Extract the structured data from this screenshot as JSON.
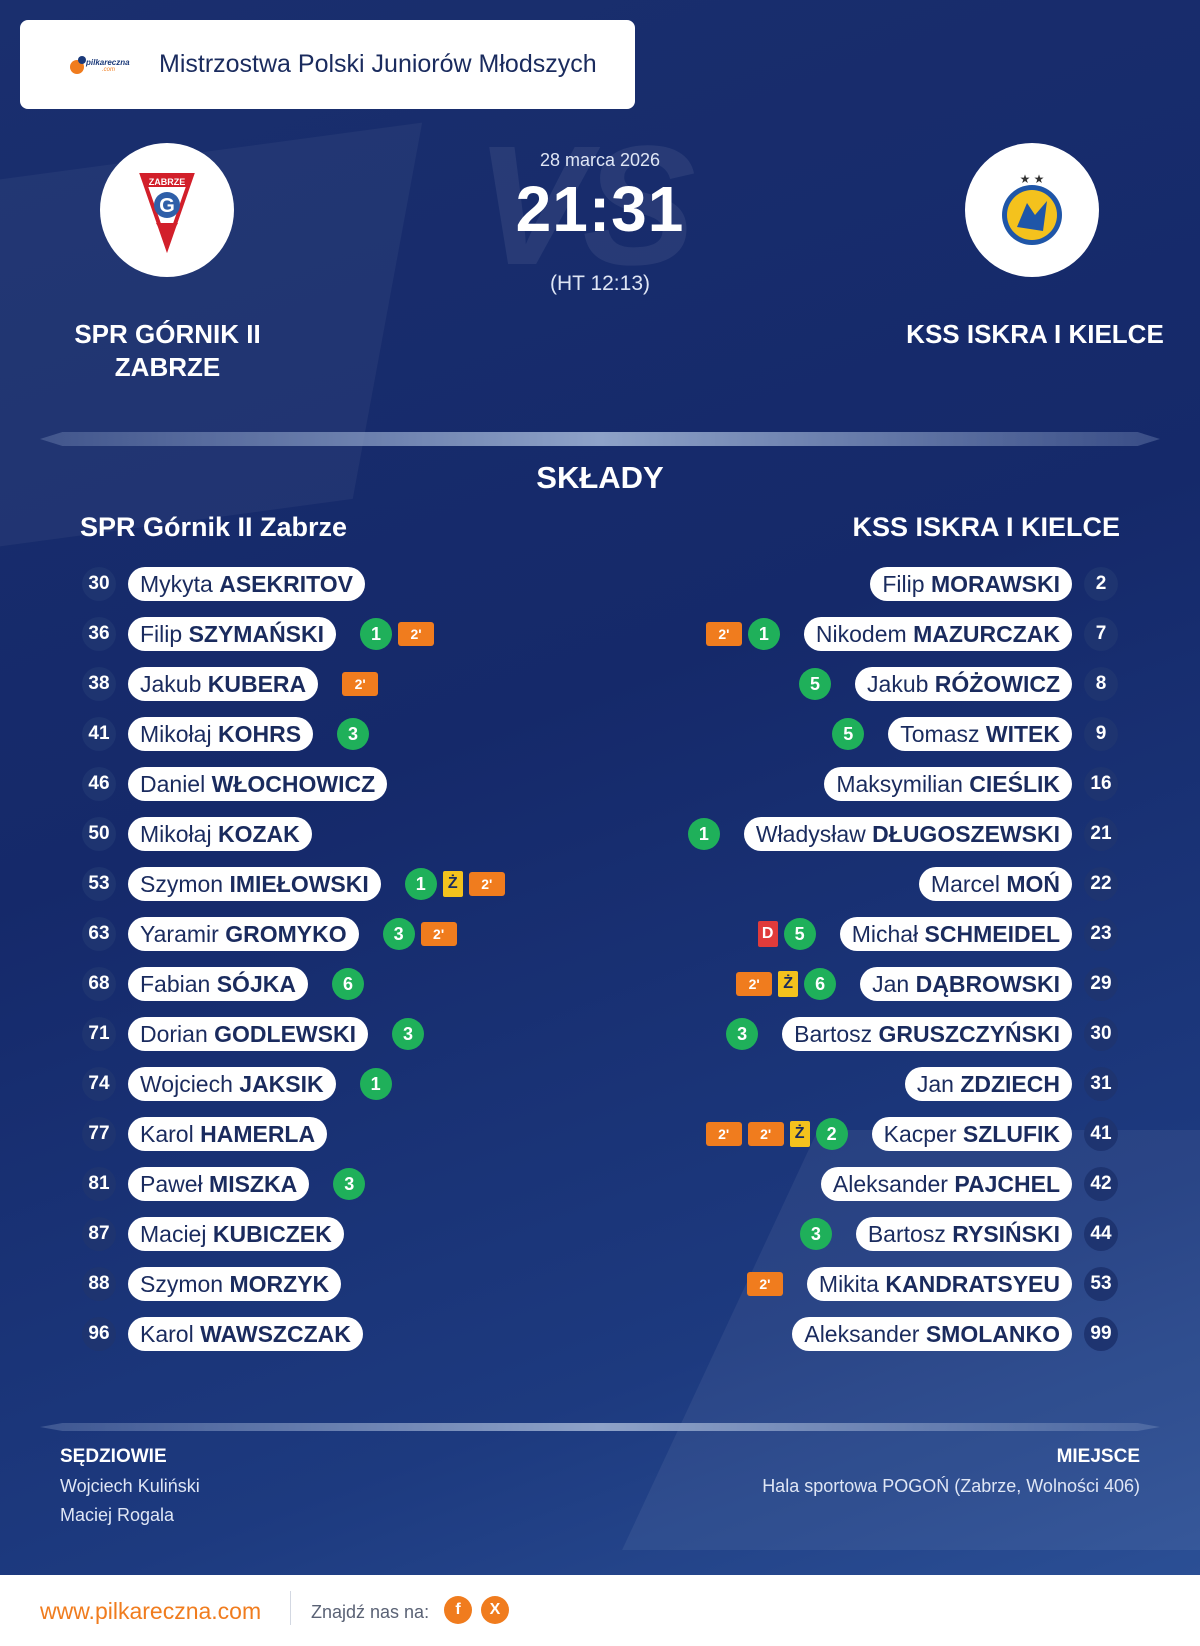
{
  "header": {
    "logo_text": "pilkareczna",
    "logo_suffix": ".com",
    "competition": "Mistrzostwa Polski Juniorów Młodszych"
  },
  "match": {
    "date": "28 marca 2026",
    "score": "21:31",
    "halftime": "(HT 12:13)",
    "vs_text": "VS",
    "home_team": "SPR GÓRNIK II ZABRZE",
    "away_team": "KSS ISKRA I KIELCE"
  },
  "lineups": {
    "section_title": "SKŁADY",
    "home_title": "SPR Górnik II Zabrze",
    "away_title": "KSS ISKRA I KIELCE",
    "home_players": [
      {
        "number": "30",
        "first": "Mykyta",
        "last": "ASEKRITOV",
        "goals": "",
        "yellow": "",
        "red": "",
        "suspensions": []
      },
      {
        "number": "36",
        "first": "Filip",
        "last": "SZYMAŃSKI",
        "goals": "1",
        "yellow": "",
        "red": "",
        "suspensions": [
          "2'"
        ]
      },
      {
        "number": "38",
        "first": "Jakub",
        "last": "KUBERA",
        "goals": "",
        "yellow": "",
        "red": "",
        "suspensions": [
          "2'"
        ]
      },
      {
        "number": "41",
        "first": "Mikołaj",
        "last": "KOHRS",
        "goals": "3",
        "yellow": "",
        "red": "",
        "suspensions": []
      },
      {
        "number": "46",
        "first": "Daniel",
        "last": "WŁOCHOWICZ",
        "goals": "",
        "yellow": "",
        "red": "",
        "suspensions": []
      },
      {
        "number": "50",
        "first": "Mikołaj",
        "last": "KOZAK",
        "goals": "",
        "yellow": "",
        "red": "",
        "suspensions": []
      },
      {
        "number": "53",
        "first": "Szymon",
        "last": "IMIEŁOWSKI",
        "goals": "1",
        "yellow": "Ż",
        "red": "",
        "suspensions": [
          "2'"
        ]
      },
      {
        "number": "63",
        "first": "Yaramir",
        "last": "GROMYKO",
        "goals": "3",
        "yellow": "",
        "red": "",
        "suspensions": [
          "2'"
        ]
      },
      {
        "number": "68",
        "first": "Fabian",
        "last": "SÓJKA",
        "goals": "6",
        "yellow": "",
        "red": "",
        "suspensions": []
      },
      {
        "number": "71",
        "first": "Dorian",
        "last": "GODLEWSKI",
        "goals": "3",
        "yellow": "",
        "red": "",
        "suspensions": []
      },
      {
        "number": "74",
        "first": "Wojciech",
        "last": "JAKSIK",
        "goals": "1",
        "yellow": "",
        "red": "",
        "suspensions": []
      },
      {
        "number": "77",
        "first": "Karol",
        "last": "HAMERLA",
        "goals": "",
        "yellow": "",
        "red": "",
        "suspensions": []
      },
      {
        "number": "81",
        "first": "Paweł",
        "last": "MISZKA",
        "goals": "3",
        "yellow": "",
        "red": "",
        "suspensions": []
      },
      {
        "number": "87",
        "first": "Maciej",
        "last": "KUBICZEK",
        "goals": "",
        "yellow": "",
        "red": "",
        "suspensions": []
      },
      {
        "number": "88",
        "first": "Szymon",
        "last": "MORZYK",
        "goals": "",
        "yellow": "",
        "red": "",
        "suspensions": []
      },
      {
        "number": "96",
        "first": "Karol",
        "last": "WAWSZCZAK",
        "goals": "",
        "yellow": "",
        "red": "",
        "suspensions": []
      }
    ],
    "away_players": [
      {
        "number": "2",
        "first": "Filip",
        "last": "MORAWSKI",
        "goals": "",
        "yellow": "",
        "red": "",
        "suspensions": []
      },
      {
        "number": "7",
        "first": "Nikodem",
        "last": "MAZURCZAK",
        "goals": "1",
        "yellow": "",
        "red": "",
        "suspensions": [
          "2'"
        ]
      },
      {
        "number": "8",
        "first": "Jakub",
        "last": "RÓŻOWICZ",
        "goals": "5",
        "yellow": "",
        "red": "",
        "suspensions": []
      },
      {
        "number": "9",
        "first": "Tomasz",
        "last": "WITEK",
        "goals": "5",
        "yellow": "",
        "red": "",
        "suspensions": []
      },
      {
        "number": "16",
        "first": "Maksymilian",
        "last": "CIEŚLIK",
        "goals": "",
        "yellow": "",
        "red": "",
        "suspensions": []
      },
      {
        "number": "21",
        "first": "Władysław",
        "last": "DŁUGOSZEWSKI",
        "goals": "1",
        "yellow": "",
        "red": "",
        "suspensions": []
      },
      {
        "number": "22",
        "first": "Marcel",
        "last": "MOŃ",
        "goals": "",
        "yellow": "",
        "red": "",
        "suspensions": []
      },
      {
        "number": "23",
        "first": "Michał",
        "last": "SCHMEIDEL",
        "goals": "5",
        "yellow": "",
        "red": "D",
        "suspensions": []
      },
      {
        "number": "29",
        "first": "Jan",
        "last": "DĄBROWSKI",
        "goals": "6",
        "yellow": "Ż",
        "red": "",
        "suspensions": [
          "2'"
        ]
      },
      {
        "number": "30",
        "first": "Bartosz",
        "last": "GRUSZCZYŃSKI",
        "goals": "3",
        "yellow": "",
        "red": "",
        "suspensions": []
      },
      {
        "number": "31",
        "first": "Jan",
        "last": "ZDZIECH",
        "goals": "",
        "yellow": "",
        "red": "",
        "suspensions": []
      },
      {
        "number": "41",
        "first": "Kacper",
        "last": "SZLUFIK",
        "goals": "2",
        "yellow": "Ż",
        "red": "",
        "suspensions": [
          "2'",
          "2'"
        ]
      },
      {
        "number": "42",
        "first": "Aleksander",
        "last": "PAJCHEL",
        "goals": "",
        "yellow": "",
        "red": "",
        "suspensions": []
      },
      {
        "number": "44",
        "first": "Bartosz",
        "last": "RYSIŃSKI",
        "goals": "3",
        "yellow": "",
        "red": "",
        "suspensions": []
      },
      {
        "number": "53",
        "first": "Mikita",
        "last": "KANDRATSYEU",
        "goals": "",
        "yellow": "",
        "red": "",
        "suspensions": [
          "2'"
        ]
      },
      {
        "number": "99",
        "first": "Aleksander",
        "last": "SMOLANKO",
        "goals": "",
        "yellow": "",
        "red": "",
        "suspensions": []
      }
    ]
  },
  "officials": {
    "referees_title": "SĘDZIOWIE",
    "referees": [
      "Wojciech Kuliński",
      "Maciej Rogala"
    ],
    "venue_title": "MIEJSCE",
    "venue": "Hala sportowa POGOŃ (Zabrze, Wolności 406)"
  },
  "footer": {
    "site": "www.pilkareczna.com",
    "find_us": "Znajdź nas na:",
    "facebook_icon": "f",
    "x_icon": "X"
  },
  "colors": {
    "background": "#15296a",
    "accent": "#f07c1e",
    "goals": "#1fb05a",
    "yellow_card": "#f4c21d",
    "red_card": "#e03b3b",
    "text_dark": "#1a2b5e"
  }
}
